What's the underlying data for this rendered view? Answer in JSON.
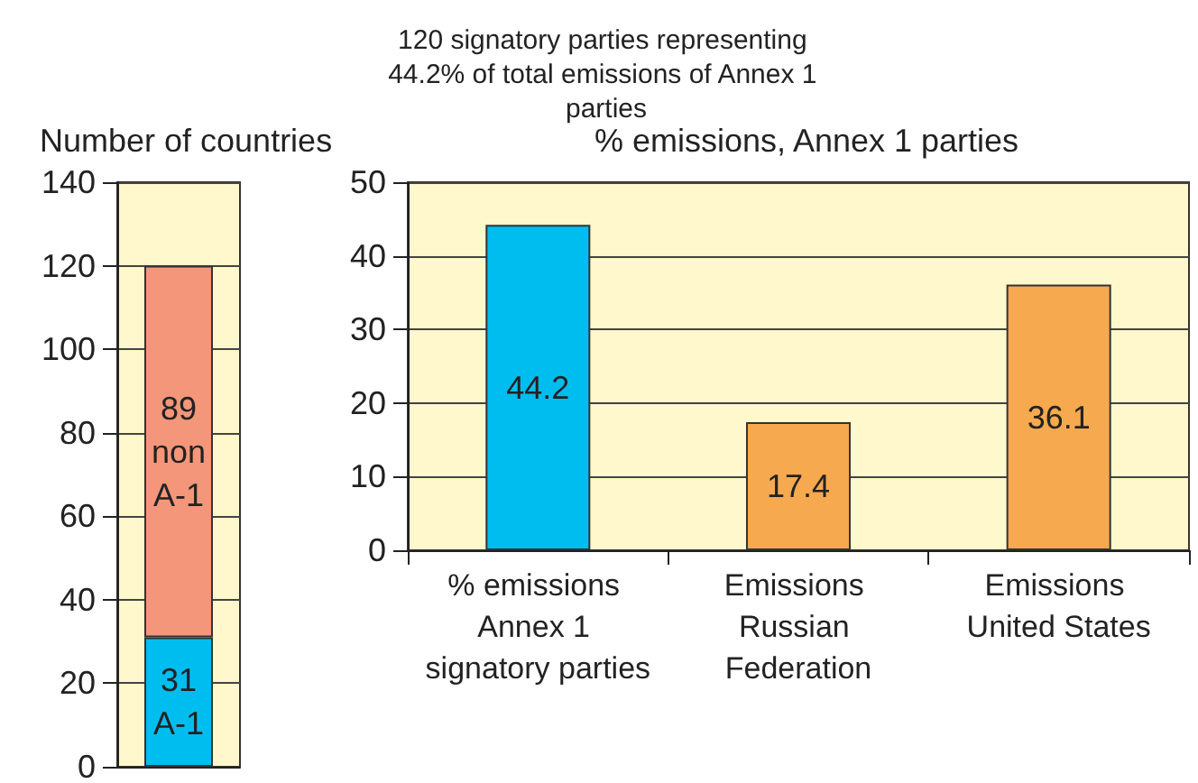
{
  "chart_data": [
    {
      "type": "bar",
      "ylabel": "Number of countries",
      "categories": [
        null
      ],
      "stacked": true,
      "data_labels": true,
      "tick_labels": "y",
      "grid": "y",
      "ylim": [
        0,
        140
      ],
      "yticks": [
        0,
        20,
        40,
        60,
        80,
        100,
        120,
        140
      ],
      "series": [
        {
          "name": "A-1",
          "color": "#00bdf0",
          "values": [
            31
          ]
        },
        {
          "name": "non A-1",
          "color": "#f4967a",
          "values": [
            89
          ]
        }
      ]
    },
    {
      "type": "bar",
      "title": "120 signatory parties representing 44.2% of total emissions of Annex 1 parties",
      "subtitle": "% emissions, Annex 1 parties",
      "categories": [
        "% emissions Annex 1 signatory parties",
        "Emissions Russian Federation",
        "Emissions United States"
      ],
      "values": [
        44.2,
        17.4,
        36.1
      ],
      "colors": [
        "#00bdf0",
        "#f6a94f",
        "#f6a94f"
      ],
      "data_labels": true,
      "grid": "y",
      "ylim": [
        0,
        50
      ],
      "yticks": [
        0,
        10,
        20,
        30,
        40,
        50
      ]
    }
  ]
}
